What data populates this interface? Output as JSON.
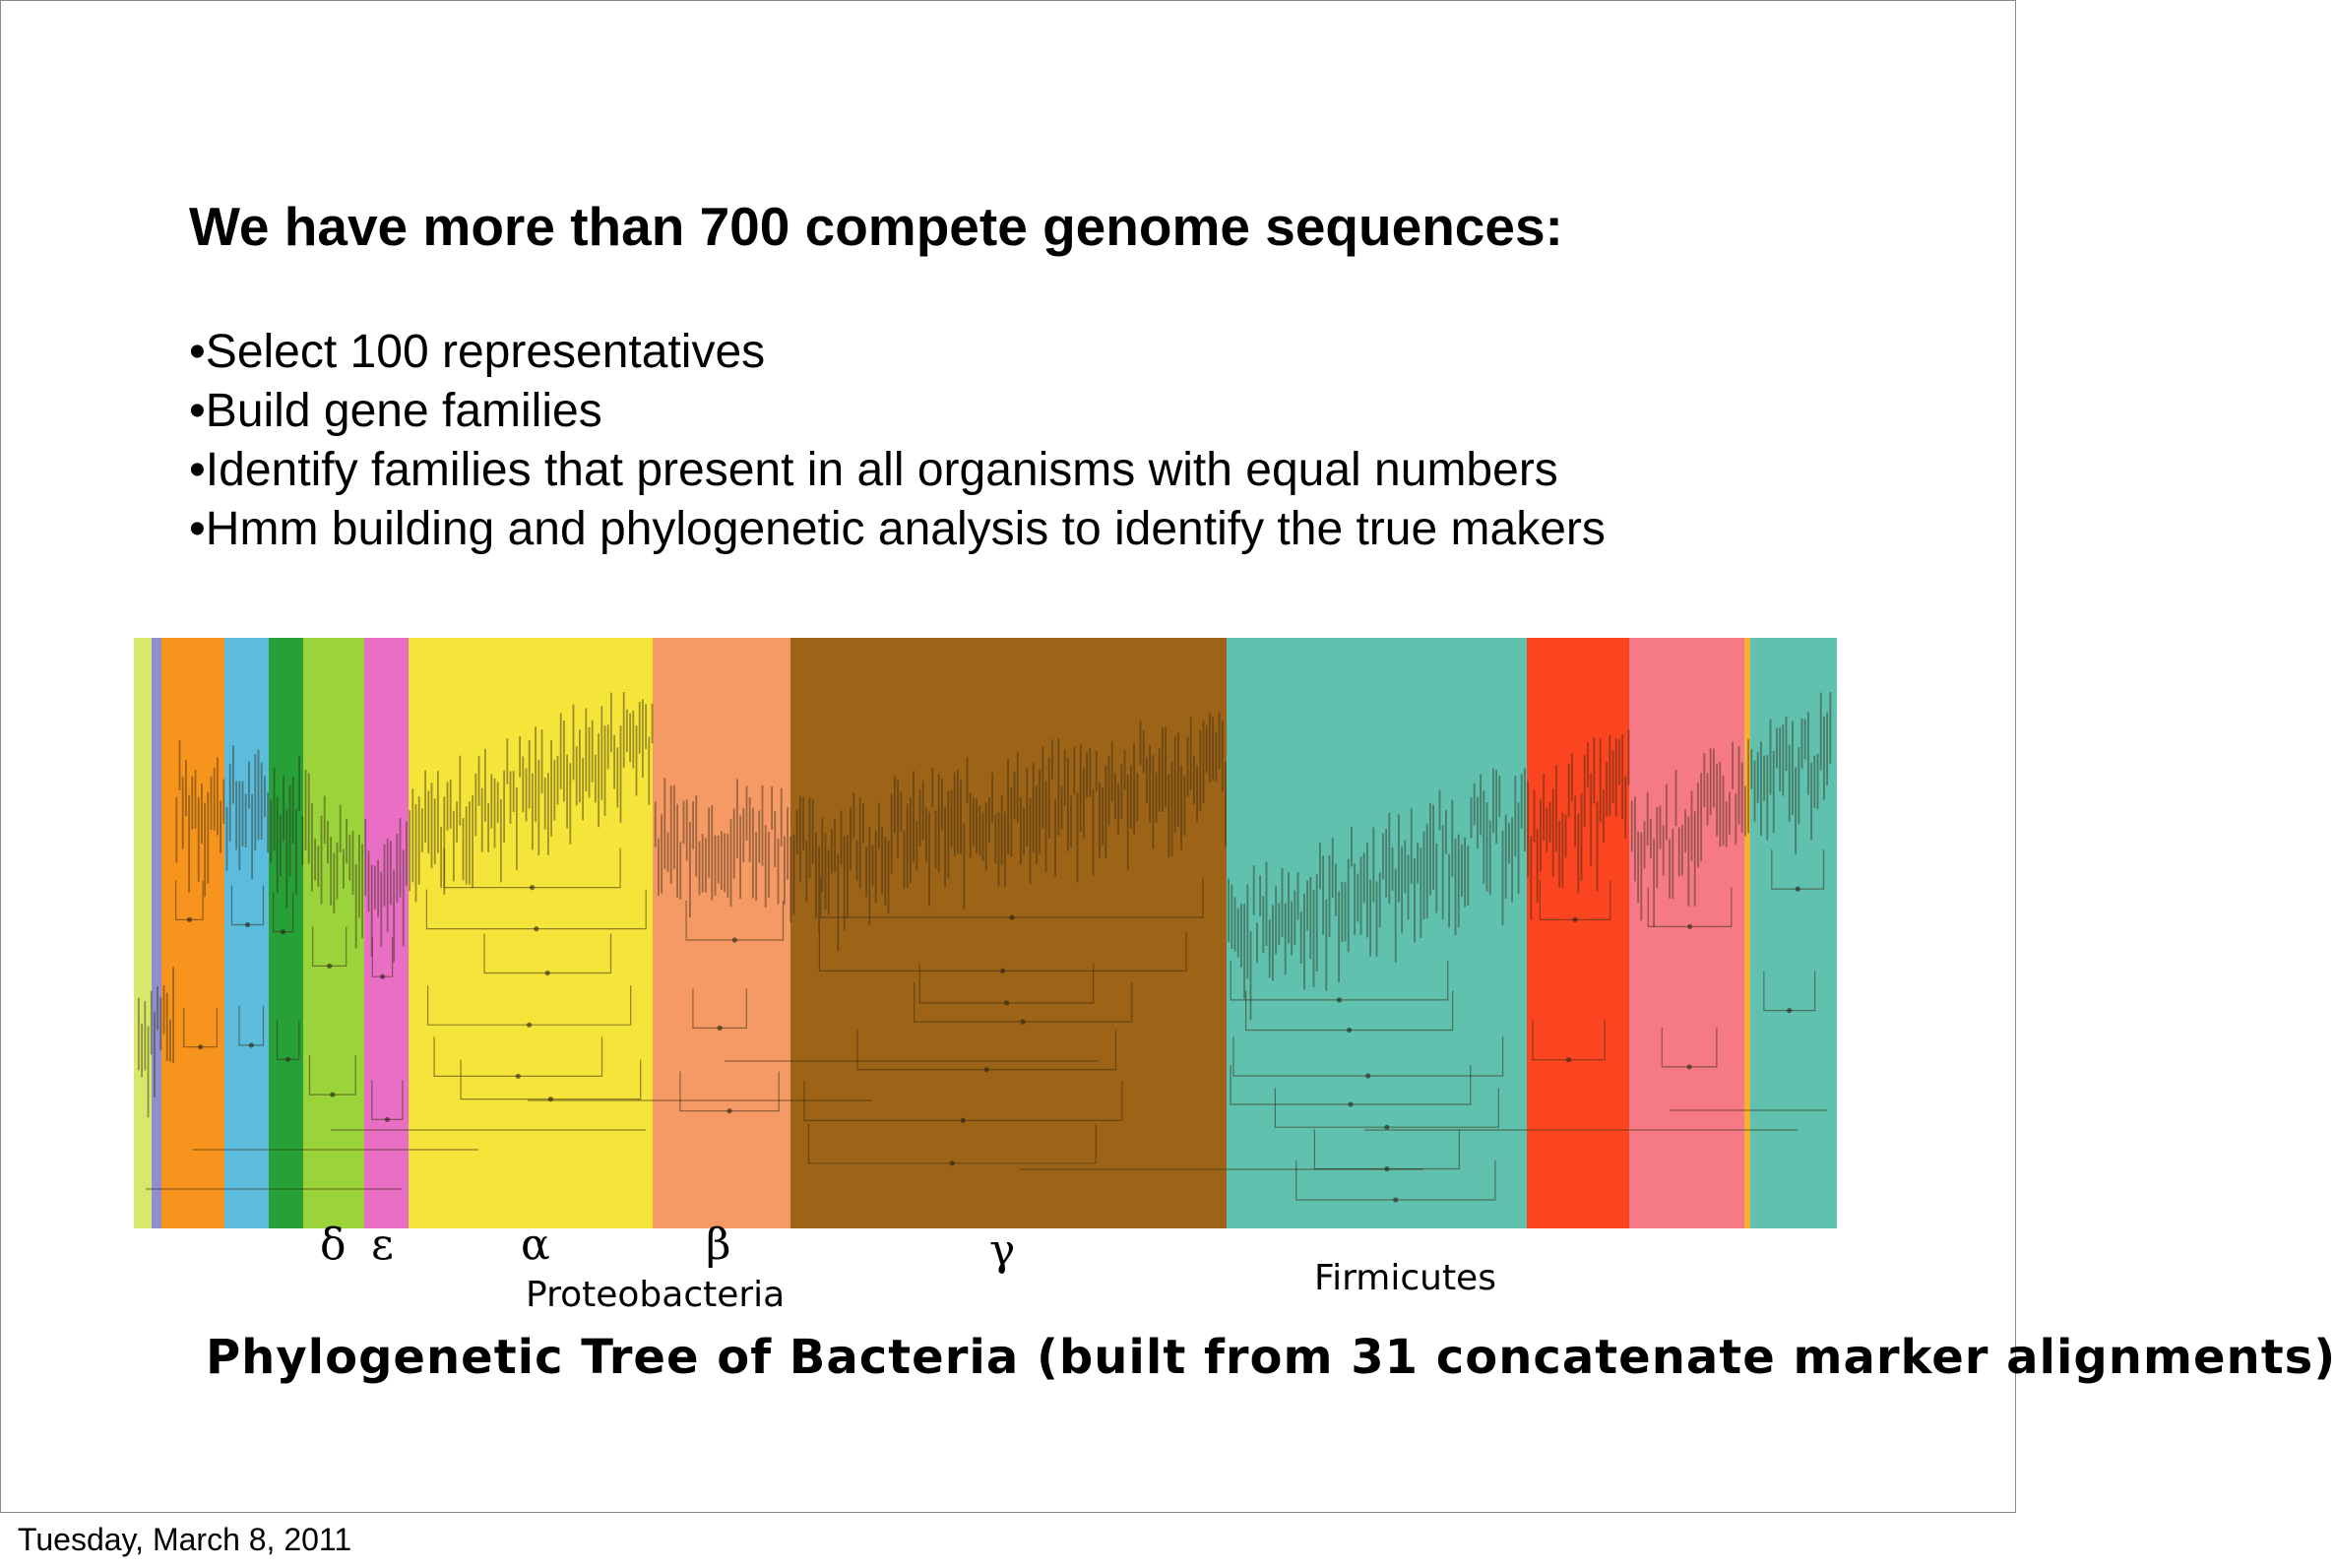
{
  "slide": {
    "title": "We have more than 700 compete genome sequences:",
    "bullets": [
      "•Select 100 representatives",
      "•Build gene families",
      "•Identify families that present in all organisms with equal numbers",
      "•Hmm building and phylogenetic analysis to identify the true makers"
    ],
    "tree": {
      "clade_colors": [
        "#d7e86a",
        "#8f8fd0",
        "#f7941d",
        "#5bbcdd",
        "#27a038",
        "#9ad33a",
        "#e86fc4",
        "#f5e43a",
        "#f59a64",
        "#9d6417",
        "#5fc1ae",
        "#fb4420",
        "#f57a86",
        "#f2b233",
        "#5fc1ae"
      ],
      "greek_labels": [
        "δ",
        "ε",
        "α",
        "β",
        "γ"
      ],
      "group_labels": {
        "proteobacteria": "Proteobacteria",
        "firmicutes": "Firmicutes"
      }
    },
    "caption": "Phylogenetic Tree of Bacteria (built from 31 concatenate marker alignments)"
  },
  "footer": {
    "date": "Tuesday, March 8, 2011"
  }
}
